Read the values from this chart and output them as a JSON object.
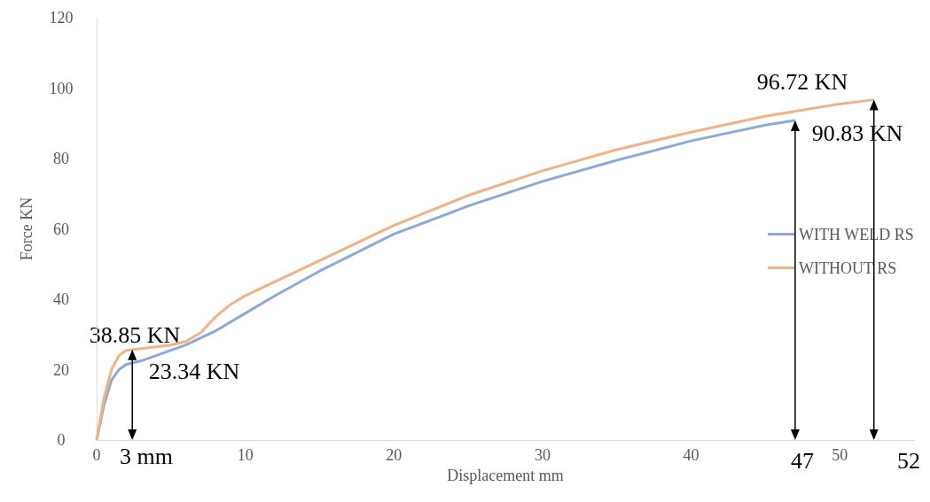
{
  "chart_data": {
    "type": "line",
    "xlabel": "Displacement mm",
    "ylabel": "Force KN",
    "xlim": [
      0,
      55
    ],
    "ylim": [
      0,
      120
    ],
    "xticks": [
      0,
      10,
      20,
      30,
      40,
      50
    ],
    "yticks": [
      0,
      20,
      40,
      60,
      80,
      100,
      120
    ],
    "legend": "right",
    "marker": "none",
    "series": [
      {
        "name": "WITH WELD RS",
        "color": "#8eaadb",
        "x": [
          0,
          0.5,
          1,
          1.5,
          2,
          3,
          4,
          5,
          6,
          7,
          8,
          10,
          12,
          15,
          20,
          25,
          30,
          35,
          40,
          45,
          47
        ],
        "values": [
          0,
          10,
          17,
          20,
          21.5,
          22.5,
          24,
          25.5,
          27,
          29,
          31,
          36,
          41,
          48,
          58.5,
          66.5,
          73.5,
          79.5,
          85,
          89.5,
          90.8
        ]
      },
      {
        "name": "WITHOUT RS",
        "color": "#f4b183",
        "x": [
          0,
          0.5,
          1,
          1.5,
          2,
          3,
          4,
          5,
          6,
          7,
          8,
          9,
          10,
          12,
          15,
          20,
          25,
          30,
          35,
          40,
          45,
          50,
          52.3
        ],
        "values": [
          0,
          12,
          20,
          24,
          25.5,
          26,
          26.5,
          27,
          28,
          30.5,
          35,
          38.5,
          41,
          45,
          51,
          61,
          69.5,
          76.5,
          82.5,
          87.5,
          92,
          95.5,
          96.7
        ]
      }
    ],
    "annotations": [
      "38.85 KN",
      "23.34 KN",
      "96.72 KN",
      "90.83 KN",
      {
        "text": "3 mm",
        "x": 2.4,
        "y": 25.7
      },
      {
        "text": "47",
        "x": 47,
        "y": 90.8
      },
      {
        "text": "52",
        "x": 52.3,
        "y": 96.7
      }
    ]
  }
}
